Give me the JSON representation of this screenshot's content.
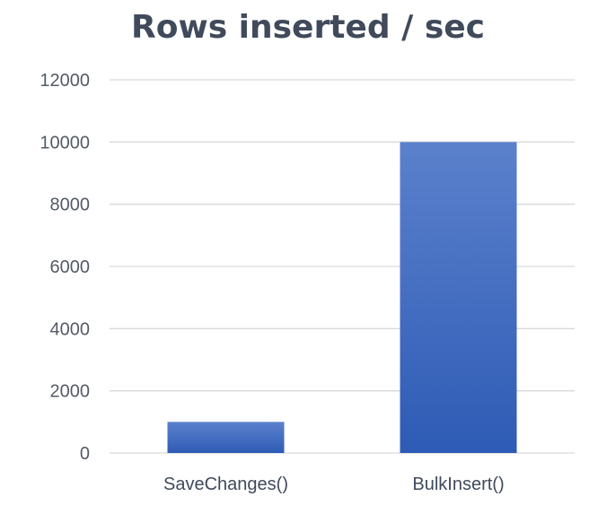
{
  "chart_data": {
    "type": "bar",
    "title": "Rows inserted / sec",
    "xlabel": "",
    "ylabel": "",
    "categories": [
      "SaveChanges()",
      "BulkInsert()"
    ],
    "values": [
      1000,
      10000
    ],
    "ylim": [
      0,
      12000
    ],
    "yticks": [
      0,
      2000,
      4000,
      6000,
      8000,
      10000,
      12000
    ],
    "grid": true,
    "legend": "none",
    "bar_color_top": "#5b81cc",
    "bar_color_bottom": "#2e5bb5"
  }
}
